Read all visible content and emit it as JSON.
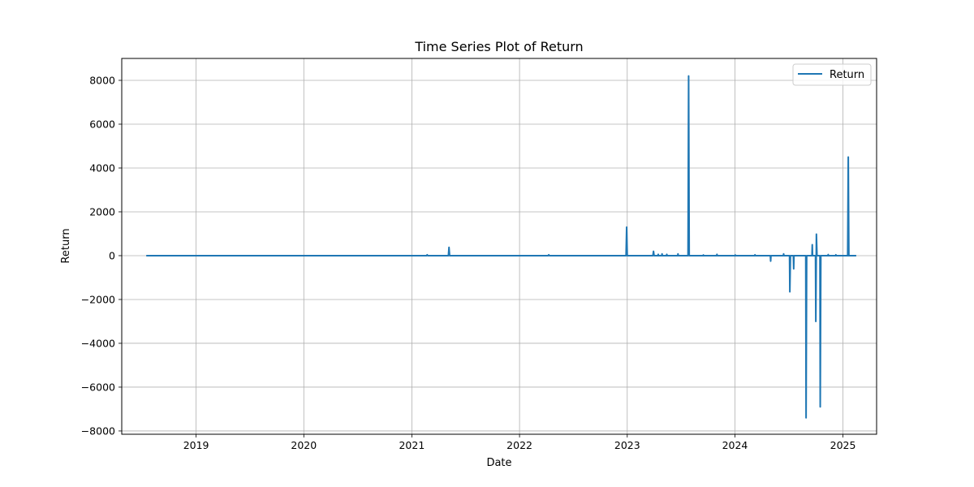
{
  "chart_data": {
    "type": "line",
    "title": "Time Series Plot of Return",
    "xlabel": "Date",
    "ylabel": "Return",
    "grid": true,
    "legend_position": "top-right",
    "x_axis": {
      "type": "date",
      "range": [
        "2018-04-24",
        "2025-04-25"
      ],
      "tick_labels": [
        "2019",
        "2020",
        "2021",
        "2022",
        "2023",
        "2024",
        "2025"
      ]
    },
    "y_axis": {
      "range": [
        -8150,
        9000
      ],
      "ticks": [
        -8000,
        -6000,
        -4000,
        -2000,
        0,
        2000,
        4000,
        6000,
        8000
      ],
      "tick_labels": [
        "−8000",
        "−6000",
        "−4000",
        "−2000",
        "0",
        "2000",
        "4000",
        "6000",
        "8000"
      ]
    },
    "series": [
      {
        "name": "Return",
        "color": "#1f77b4",
        "points": [
          [
            "2018-07-16",
            0
          ],
          [
            "2021-02-20",
            0
          ],
          [
            "2021-02-22",
            40
          ],
          [
            "2021-02-24",
            0
          ],
          [
            "2021-05-05",
            0
          ],
          [
            "2021-05-07",
            380
          ],
          [
            "2021-05-09",
            0
          ],
          [
            "2022-04-08",
            0
          ],
          [
            "2022-04-10",
            40
          ],
          [
            "2022-04-12",
            0
          ],
          [
            "2022-12-28",
            0
          ],
          [
            "2022-12-30",
            1300
          ],
          [
            "2023-01-01",
            0
          ],
          [
            "2023-03-29",
            0
          ],
          [
            "2023-03-31",
            200
          ],
          [
            "2023-04-02",
            0
          ],
          [
            "2023-04-15",
            0
          ],
          [
            "2023-04-16",
            60
          ],
          [
            "2023-04-17",
            0
          ],
          [
            "2023-04-28",
            0
          ],
          [
            "2023-04-29",
            80
          ],
          [
            "2023-04-30",
            0
          ],
          [
            "2023-05-14",
            0
          ],
          [
            "2023-05-15",
            60
          ],
          [
            "2023-05-16",
            0
          ],
          [
            "2023-06-21",
            0
          ],
          [
            "2023-06-22",
            80
          ],
          [
            "2023-06-23",
            0
          ],
          [
            "2023-07-26",
            0
          ],
          [
            "2023-07-28",
            8200
          ],
          [
            "2023-07-30",
            0
          ],
          [
            "2023-09-15",
            0
          ],
          [
            "2023-09-16",
            30
          ],
          [
            "2023-09-17",
            0
          ],
          [
            "2023-10-31",
            0
          ],
          [
            "2023-11-01",
            60
          ],
          [
            "2023-11-02",
            0
          ],
          [
            "2024-01-01",
            0
          ],
          [
            "2024-01-02",
            30
          ],
          [
            "2024-01-03",
            0
          ],
          [
            "2024-03-08",
            0
          ],
          [
            "2024-03-09",
            40
          ],
          [
            "2024-03-10",
            0
          ],
          [
            "2024-04-30",
            0
          ],
          [
            "2024-05-01",
            -250
          ],
          [
            "2024-05-02",
            0
          ],
          [
            "2024-06-13",
            0
          ],
          [
            "2024-06-14",
            80
          ],
          [
            "2024-06-15",
            0
          ],
          [
            "2024-07-04",
            0
          ],
          [
            "2024-07-05",
            -1650
          ],
          [
            "2024-07-07",
            0
          ],
          [
            "2024-07-17",
            0
          ],
          [
            "2024-07-18",
            -600
          ],
          [
            "2024-07-19",
            0
          ],
          [
            "2024-08-28",
            0
          ],
          [
            "2024-08-29",
            -7400
          ],
          [
            "2024-08-31",
            0
          ],
          [
            "2024-09-18",
            0
          ],
          [
            "2024-09-19",
            500
          ],
          [
            "2024-09-20",
            0
          ],
          [
            "2024-09-30",
            0
          ],
          [
            "2024-10-01",
            -3000
          ],
          [
            "2024-10-03",
            980
          ],
          [
            "2024-10-05",
            0
          ],
          [
            "2024-10-15",
            0
          ],
          [
            "2024-10-16",
            -6900
          ],
          [
            "2024-10-18",
            0
          ],
          [
            "2024-11-11",
            0
          ],
          [
            "2024-11-12",
            50
          ],
          [
            "2024-11-13",
            0
          ],
          [
            "2024-12-07",
            0
          ],
          [
            "2024-12-08",
            40
          ],
          [
            "2024-12-09",
            0
          ],
          [
            "2025-01-17",
            0
          ],
          [
            "2025-01-19",
            4500
          ],
          [
            "2025-01-21",
            0
          ],
          [
            "2025-02-15",
            0
          ]
        ]
      }
    ]
  }
}
